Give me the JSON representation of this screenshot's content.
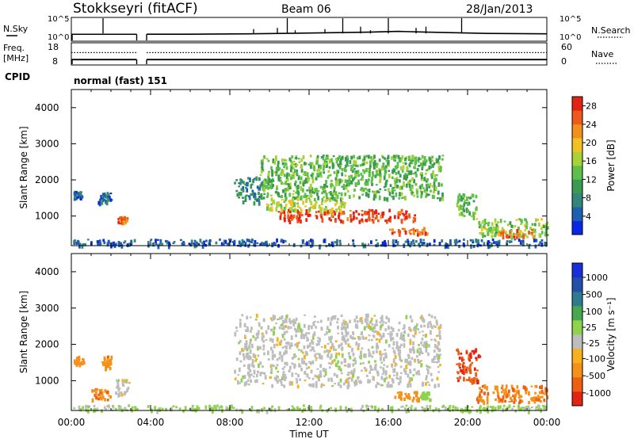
{
  "header": {
    "station": "Stokkseyri (fitACF)",
    "beam": "Beam 06",
    "date": "28/Jan/2013"
  },
  "colors": {
    "power_scale": [
      "#0b27e6",
      "#1f5fb0",
      "#35857a",
      "#3a9a52",
      "#5cc04a",
      "#a8d238",
      "#f0c224",
      "#f2901e",
      "#ee5a1c",
      "#e22416"
    ],
    "velocity_scale": [
      "#1b2fd9",
      "#2250a8",
      "#2f7a8e",
      "#49a84f",
      "#8ed24e",
      "#bdbdbd",
      "#f7b11c",
      "#f5901a",
      "#ee5f16",
      "#e22414"
    ]
  },
  "chart_data": [
    {
      "type": "line",
      "panel": "noise",
      "left_labels": [
        "N.Sky"
      ],
      "right_labels": [
        "N.Search"
      ],
      "yticks_left": [
        "10^5",
        "10^0"
      ],
      "yticks_right": [
        "10^5",
        "10^0"
      ],
      "x_range_hours": [
        0,
        24
      ],
      "gap_hours": [
        3.3,
        3.8
      ],
      "series": [
        {
          "x": [
            0,
            3.3,
            3.8,
            6,
            9,
            12,
            15,
            16.5,
            18,
            21,
            24
          ],
          "y": [
            1.3,
            1.3,
            1.3,
            1.3,
            1.4,
            1.6,
            1.8,
            2.0,
            1.8,
            1.5,
            1.4
          ]
        }
      ],
      "spikes_hours": [
        1.6,
        9.2,
        10.4,
        10.9,
        11.3,
        12.8,
        13.7,
        14.6,
        15.1,
        16.0,
        17.4,
        17.9,
        19.7
      ]
    },
    {
      "type": "line",
      "panel": "frequency",
      "left_labels": [
        "Freq.",
        "[MHz]"
      ],
      "right_labels": [
        "Nave"
      ],
      "yticks_left": [
        "18",
        "8"
      ],
      "yticks_right": [
        "60",
        "0"
      ],
      "ylim_left": [
        8,
        18
      ],
      "ylim_right": [
        0,
        60
      ],
      "x_range_hours": [
        0,
        24
      ],
      "freq_mhz": 10,
      "nave": 34
    },
    {
      "type": "table",
      "panel": "cpid",
      "label": "CPID",
      "value": "normal (fast) 151"
    },
    {
      "type": "heatmap",
      "panel": "power",
      "ylabel": "Slant Range [km]",
      "yticks": [
        "1000",
        "2000",
        "3000",
        "4000"
      ],
      "ylim": [
        180,
        4500
      ],
      "colorbar_label": "Power [dB]",
      "colorbar_ticks": [
        "4",
        "8",
        "12",
        "16",
        "20",
        "24",
        "28"
      ],
      "colorbar_range": [
        0,
        30
      ],
      "x_range_hours": [
        0,
        24
      ],
      "regions": [
        {
          "t": [
            9.5,
            18.7
          ],
          "r": [
            1500,
            2700
          ],
          "db": 13
        },
        {
          "t": [
            10.4,
            17.3
          ],
          "r": [
            880,
            1200
          ],
          "db": 27
        },
        {
          "t": [
            9.8,
            13.8
          ],
          "r": [
            1180,
            1520
          ],
          "db": 17
        },
        {
          "t": [
            16.0,
            18.0
          ],
          "r": [
            500,
            700
          ],
          "db": 25
        },
        {
          "t": [
            19.4,
            20.4
          ],
          "r": [
            1000,
            1700
          ],
          "db": 13
        },
        {
          "t": [
            20.4,
            24.0
          ],
          "r": [
            450,
            950
          ],
          "db": 15
        },
        {
          "t": [
            21.5,
            23.3
          ],
          "r": [
            430,
            650
          ],
          "db": 24
        },
        {
          "t": [
            2.3,
            2.8
          ],
          "r": [
            820,
            1000
          ],
          "db": 24
        },
        {
          "t": [
            1.3,
            2.0
          ],
          "r": [
            1380,
            1700
          ],
          "db": 6
        },
        {
          "t": [
            0.1,
            0.5
          ],
          "r": [
            1500,
            1700
          ],
          "db": 6
        },
        {
          "t": [
            8.2,
            9.6
          ],
          "r": [
            1400,
            2100
          ],
          "db": 8
        },
        {
          "t": [
            0.0,
            24.0
          ],
          "r": [
            200,
            380
          ],
          "db": 5
        }
      ]
    },
    {
      "type": "heatmap",
      "panel": "velocity",
      "ylabel": "Slant Range [km]",
      "yticks": [
        "1000",
        "2000",
        "3000",
        "4000"
      ],
      "ylim": [
        180,
        4500
      ],
      "colorbar_label": "Velocity [m s⁻¹]",
      "colorbar_ticks": [
        "1000",
        "500",
        "100",
        "25",
        "-25",
        "-100",
        "-500",
        "-1000"
      ],
      "x_range_hours": [
        0,
        24
      ],
      "xticks": [
        "00:00",
        "04:00",
        "08:00",
        "12:00",
        "16:00",
        "20:00",
        "00:00"
      ],
      "xlabel": "Time UT",
      "regions": [
        {
          "t": [
            8.2,
            18.6
          ],
          "r": [
            880,
            2850
          ],
          "v": 0
        },
        {
          "t": [
            16.3,
            17.6
          ],
          "r": [
            480,
            720
          ],
          "v": -300
        },
        {
          "t": [
            17.6,
            18.1
          ],
          "r": [
            480,
            720
          ],
          "v": 60
        },
        {
          "t": [
            19.4,
            20.6
          ],
          "r": [
            1000,
            1900
          ],
          "v": -900
        },
        {
          "t": [
            20.4,
            24.0
          ],
          "r": [
            430,
            900
          ],
          "v": -420
        },
        {
          "t": [
            2.2,
            2.9
          ],
          "r": [
            650,
            1050
          ],
          "v": 0
        },
        {
          "t": [
            1.5,
            2.0
          ],
          "r": [
            1380,
            1700
          ],
          "v": -300
        },
        {
          "t": [
            0.1,
            0.6
          ],
          "r": [
            1450,
            1700
          ],
          "v": -200
        },
        {
          "t": [
            1.0,
            2.0
          ],
          "r": [
            500,
            800
          ],
          "v": -400
        },
        {
          "t": [
            0.0,
            24.0
          ],
          "r": [
            200,
            350
          ],
          "v": 40
        }
      ]
    }
  ]
}
